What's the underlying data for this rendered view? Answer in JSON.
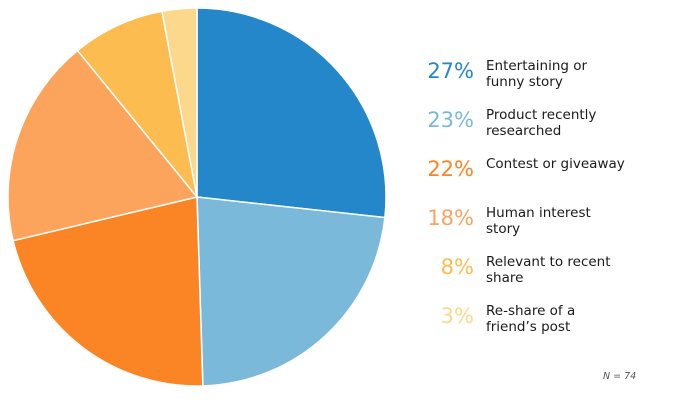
{
  "chart_data": {
    "type": "pie",
    "slices": [
      {
        "value": 27,
        "pct_label": "27%",
        "label": "Entertaining or funny story",
        "label_lines": [
          "Entertaining or",
          "funny story"
        ],
        "color": "#2387c9"
      },
      {
        "value": 23,
        "pct_label": "23%",
        "label": "Product recently researched",
        "label_lines": [
          "Product recently",
          "researched"
        ],
        "color": "#7ab9da"
      },
      {
        "value": 22,
        "pct_label": "22%",
        "label": "Contest or giveaway",
        "label_lines": [
          "Contest or giveaway"
        ],
        "color": "#fb8424"
      },
      {
        "value": 18,
        "pct_label": "18%",
        "label": "Human interest story",
        "label_lines": [
          "Human interest",
          "story"
        ],
        "color": "#fca45c"
      },
      {
        "value": 8,
        "pct_label": "8%",
        "label": "Relevant to recent share",
        "label_lines": [
          "Relevant to recent",
          "share"
        ],
        "color": "#fcbc50"
      },
      {
        "value": 3,
        "pct_label": "3%",
        "label": "Re-share of a friend’s post",
        "label_lines": [
          "Re-share of a",
          "friend’s post"
        ],
        "color": "#fcd88c"
      }
    ],
    "note": "N = 74"
  }
}
